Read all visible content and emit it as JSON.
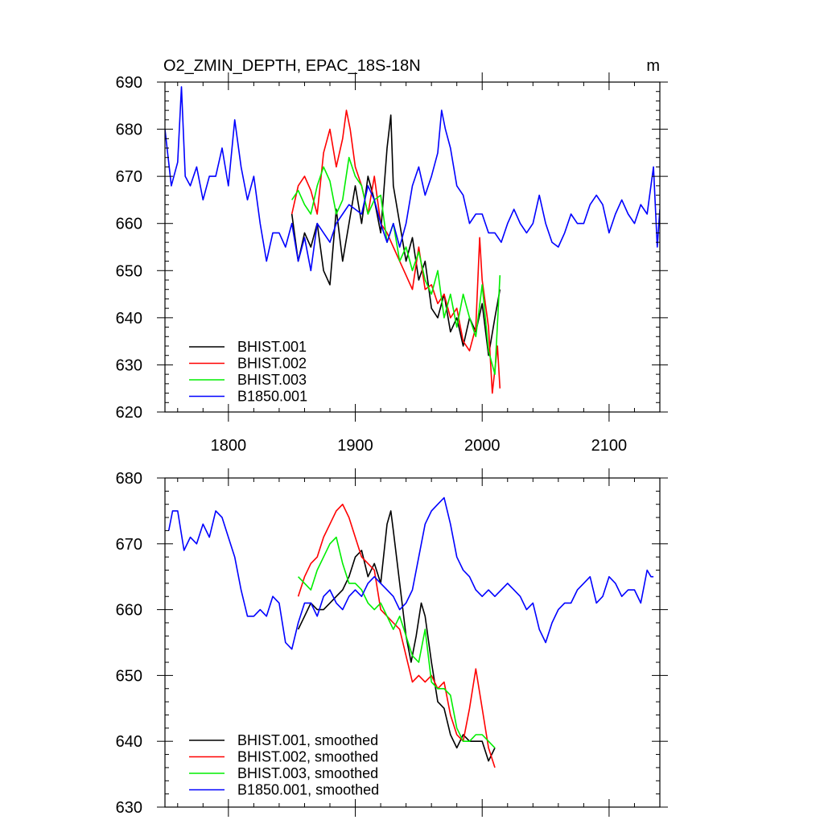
{
  "chart_data": [
    {
      "type": "line",
      "title": "O2_ZMIN_DEPTH, EPAC_18S-18N",
      "units": "m",
      "xlabel": "",
      "ylabel": "",
      "xlim": [
        1750,
        2140
      ],
      "ylim": [
        620,
        690
      ],
      "xticks": [
        1800,
        1900,
        2000,
        2100
      ],
      "yticks": [
        620,
        630,
        640,
        650,
        660,
        670,
        680,
        690
      ],
      "legend_position": "bottom-left",
      "series": [
        {
          "name": "BHIST.001",
          "color": "#000000",
          "x": [
            1850,
            1855,
            1860,
            1865,
            1870,
            1875,
            1880,
            1885,
            1890,
            1895,
            1900,
            1905,
            1910,
            1915,
            1920,
            1925,
            1928,
            1930,
            1935,
            1940,
            1945,
            1950,
            1955,
            1960,
            1965,
            1970,
            1975,
            1980,
            1985,
            1990,
            1995,
            2000,
            2005,
            2010,
            2014
          ],
          "y": [
            662,
            652,
            658,
            655,
            660,
            650,
            647,
            663,
            652,
            660,
            668,
            660,
            670,
            665,
            658,
            676,
            683,
            668,
            660,
            652,
            657,
            648,
            652,
            642,
            640,
            645,
            637,
            640,
            634,
            640,
            637,
            643,
            632,
            640,
            646
          ]
        },
        {
          "name": "BHIST.002",
          "color": "#ff0000",
          "x": [
            1850,
            1855,
            1860,
            1865,
            1870,
            1875,
            1880,
            1885,
            1890,
            1893,
            1896,
            1900,
            1905,
            1910,
            1915,
            1920,
            1925,
            1930,
            1935,
            1940,
            1945,
            1950,
            1955,
            1960,
            1965,
            1970,
            1975,
            1980,
            1985,
            1990,
            1995,
            1998,
            2000,
            2005,
            2008,
            2012,
            2014
          ],
          "y": [
            662,
            668,
            670,
            667,
            662,
            675,
            680,
            672,
            678,
            684,
            680,
            672,
            668,
            662,
            670,
            660,
            658,
            655,
            652,
            649,
            646,
            655,
            646,
            647,
            643,
            645,
            640,
            642,
            635,
            633,
            638,
            657,
            648,
            638,
            624,
            634,
            625
          ]
        },
        {
          "name": "BHIST.003",
          "color": "#00ee00",
          "x": [
            1850,
            1855,
            1860,
            1865,
            1870,
            1875,
            1880,
            1885,
            1890,
            1895,
            1900,
            1905,
            1910,
            1915,
            1920,
            1925,
            1930,
            1935,
            1940,
            1945,
            1950,
            1955,
            1960,
            1965,
            1970,
            1975,
            1980,
            1985,
            1990,
            1995,
            2000,
            2005,
            2010,
            2014
          ],
          "y": [
            665,
            667,
            664,
            662,
            668,
            672,
            669,
            662,
            665,
            674,
            670,
            668,
            662,
            665,
            666,
            656,
            660,
            652,
            655,
            650,
            654,
            648,
            645,
            650,
            640,
            645,
            638,
            645,
            640,
            636,
            647,
            633,
            628,
            649
          ]
        },
        {
          "name": "B1850.001",
          "color": "#0000ff",
          "x": [
            1750,
            1755,
            1760,
            1763,
            1766,
            1770,
            1775,
            1780,
            1785,
            1790,
            1795,
            1800,
            1805,
            1810,
            1815,
            1820,
            1825,
            1830,
            1835,
            1840,
            1845,
            1850,
            1855,
            1860,
            1865,
            1870,
            1875,
            1880,
            1885,
            1890,
            1895,
            1900,
            1905,
            1910,
            1915,
            1920,
            1925,
            1930,
            1935,
            1940,
            1945,
            1950,
            1955,
            1960,
            1965,
            1968,
            1971,
            1975,
            1980,
            1985,
            1990,
            1995,
            2000,
            2005,
            2010,
            2015,
            2020,
            2025,
            2030,
            2035,
            2040,
            2045,
            2050,
            2055,
            2060,
            2065,
            2070,
            2075,
            2080,
            2085,
            2090,
            2095,
            2100,
            2105,
            2110,
            2115,
            2120,
            2125,
            2130,
            2135,
            2138,
            2140
          ],
          "y": [
            680,
            668,
            673,
            689,
            670,
            668,
            672,
            665,
            670,
            670,
            676,
            668,
            682,
            672,
            665,
            670,
            660,
            652,
            658,
            658,
            655,
            660,
            652,
            657,
            650,
            660,
            658,
            656,
            660,
            662,
            664,
            663,
            662,
            668,
            665,
            660,
            656,
            660,
            655,
            660,
            668,
            672,
            666,
            670,
            675,
            684,
            680,
            676,
            668,
            666,
            660,
            662,
            662,
            658,
            658,
            656,
            660,
            663,
            660,
            658,
            660,
            666,
            660,
            656,
            655,
            658,
            662,
            660,
            660,
            664,
            666,
            664,
            658,
            662,
            665,
            662,
            660,
            664,
            662,
            672,
            655,
            663
          ]
        }
      ]
    },
    {
      "type": "line",
      "title": "",
      "xlabel": "",
      "ylabel": "",
      "xlim": [
        1750,
        2140
      ],
      "ylim": [
        630,
        680
      ],
      "xticks": [
        1800,
        1900,
        2000,
        2100
      ],
      "yticks": [
        630,
        640,
        650,
        660,
        670,
        680
      ],
      "legend_position": "bottom-left",
      "series": [
        {
          "name": "BHIST.001, smoothed",
          "color": "#000000",
          "x": [
            1855,
            1860,
            1865,
            1870,
            1875,
            1880,
            1885,
            1890,
            1895,
            1900,
            1905,
            1910,
            1915,
            1920,
            1925,
            1928,
            1930,
            1935,
            1940,
            1944,
            1948,
            1952,
            1955,
            1960,
            1965,
            1970,
            1975,
            1980,
            1985,
            1990,
            1995,
            2000,
            2005,
            2010
          ],
          "y": [
            657,
            659,
            661,
            660,
            660,
            661,
            662,
            663,
            665,
            668,
            669,
            665,
            667,
            664,
            673,
            675,
            672,
            664,
            656,
            652,
            656,
            661,
            659,
            652,
            646,
            645,
            641,
            639,
            641,
            640,
            640,
            640,
            637,
            639
          ]
        },
        {
          "name": "BHIST.002, smoothed",
          "color": "#ff0000",
          "x": [
            1855,
            1860,
            1865,
            1870,
            1875,
            1880,
            1885,
            1890,
            1895,
            1900,
            1905,
            1910,
            1915,
            1920,
            1925,
            1930,
            1935,
            1940,
            1945,
            1950,
            1955,
            1960,
            1965,
            1970,
            1975,
            1980,
            1985,
            1990,
            1995,
            2000,
            2005,
            2010
          ],
          "y": [
            662,
            665,
            667,
            668,
            671,
            673,
            675,
            676,
            674,
            671,
            668,
            667,
            666,
            660,
            659,
            658,
            657,
            653,
            649,
            650,
            649,
            650,
            648,
            649,
            644,
            641,
            640,
            645,
            651,
            645,
            639,
            636
          ]
        },
        {
          "name": "BHIST.003, smoothed",
          "color": "#00ee00",
          "x": [
            1855,
            1860,
            1865,
            1870,
            1875,
            1880,
            1885,
            1890,
            1895,
            1900,
            1905,
            1910,
            1915,
            1920,
            1925,
            1930,
            1935,
            1940,
            1945,
            1950,
            1955,
            1960,
            1965,
            1970,
            1975,
            1980,
            1985,
            1990,
            1995,
            2000,
            2005,
            2010
          ],
          "y": [
            665,
            664,
            663,
            666,
            668,
            670,
            671,
            667,
            664,
            664,
            663,
            661,
            660,
            661,
            659,
            657,
            659,
            656,
            653,
            652,
            657,
            649,
            648,
            648,
            647,
            642,
            640,
            640,
            641,
            641,
            640,
            639
          ]
        },
        {
          "name": "B1850.001, smoothed",
          "color": "#0000ff",
          "x": [
            1753,
            1756,
            1760,
            1765,
            1770,
            1775,
            1780,
            1785,
            1790,
            1795,
            1800,
            1805,
            1810,
            1815,
            1820,
            1825,
            1830,
            1835,
            1840,
            1845,
            1850,
            1855,
            1860,
            1865,
            1870,
            1875,
            1880,
            1885,
            1890,
            1895,
            1900,
            1905,
            1910,
            1915,
            1920,
            1925,
            1930,
            1935,
            1940,
            1945,
            1950,
            1955,
            1960,
            1965,
            1970,
            1975,
            1980,
            1985,
            1990,
            1995,
            2000,
            2005,
            2010,
            2015,
            2020,
            2025,
            2030,
            2035,
            2040,
            2045,
            2050,
            2055,
            2060,
            2065,
            2070,
            2075,
            2080,
            2085,
            2090,
            2095,
            2100,
            2105,
            2110,
            2115,
            2120,
            2125,
            2130,
            2133,
            2135
          ],
          "y": [
            672,
            675,
            675,
            669,
            671,
            670,
            673,
            671,
            675,
            674,
            671,
            668,
            663,
            659,
            659,
            660,
            659,
            662,
            661,
            655,
            654,
            658,
            661,
            661,
            659,
            662,
            663,
            661,
            660,
            662,
            663,
            662,
            664,
            665,
            664,
            663,
            662,
            660,
            661,
            663,
            668,
            673,
            675,
            676,
            677,
            673,
            668,
            666,
            665,
            663,
            662,
            663,
            662,
            663,
            664,
            663,
            662,
            660,
            661,
            657,
            655,
            658,
            660,
            661,
            661,
            663,
            664,
            665,
            661,
            662,
            665,
            664,
            662,
            663,
            663,
            661,
            666,
            665,
            665
          ]
        }
      ]
    }
  ]
}
